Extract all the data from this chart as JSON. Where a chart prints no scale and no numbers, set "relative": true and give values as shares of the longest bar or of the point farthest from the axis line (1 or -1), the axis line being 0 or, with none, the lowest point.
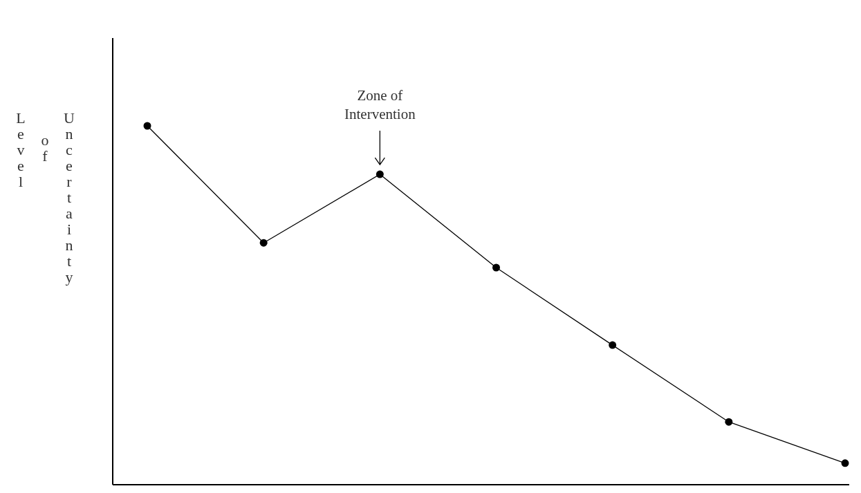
{
  "chart_data": {
    "type": "line",
    "relative": true,
    "ylabel": "Level of Uncertainty",
    "categories": [
      null,
      null,
      null,
      null,
      null,
      null,
      null
    ],
    "series": [
      {
        "color": "#000000",
        "marker": "circle",
        "values": [
          1,
          0.674,
          0.865,
          0.605,
          0.389,
          0.175,
          0.06
        ]
      }
    ],
    "annotations": [
      "Zone of Intervention"
    ]
  }
}
